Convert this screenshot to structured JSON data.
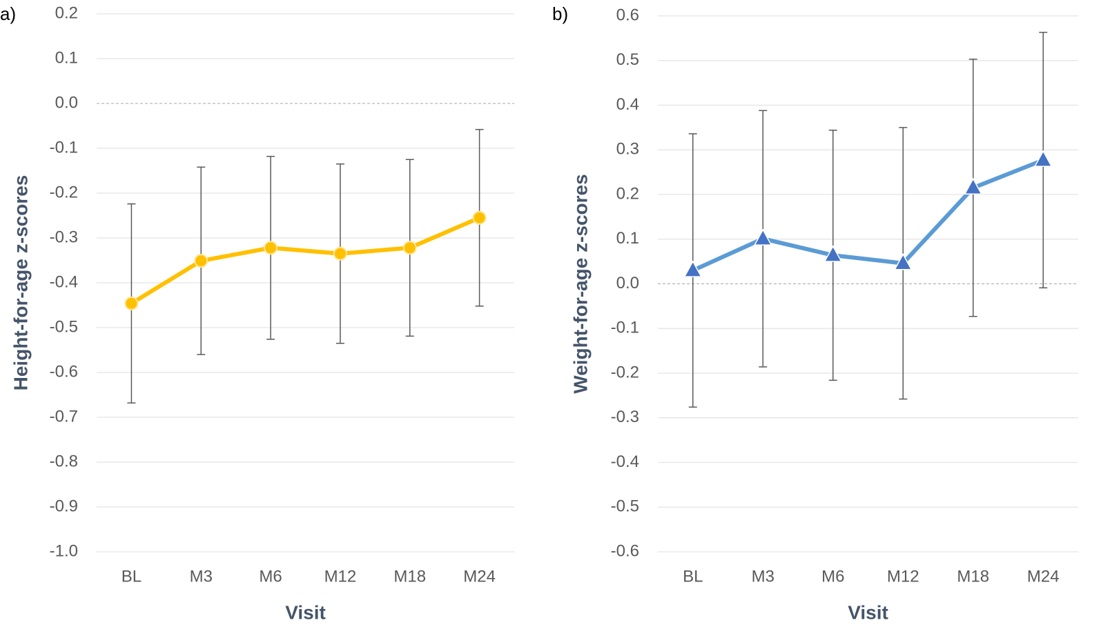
{
  "chart_data": [
    {
      "type": "line",
      "label": "a)",
      "y_label": "Height-for-age z-scores",
      "x_label": "Visit",
      "categories": [
        "BL",
        "M3",
        "M6",
        "M12",
        "M18",
        "M24"
      ],
      "values": [
        -0.446,
        -0.351,
        -0.322,
        -0.335,
        -0.322,
        -0.255
      ],
      "errors": [
        0.222,
        0.209,
        0.204,
        0.2,
        0.197,
        0.197
      ],
      "color": "#ffc000",
      "marker": "circle",
      "ylim": [
        -1.0,
        0.2
      ],
      "yticks": [
        {
          "value": 0.2,
          "label": "0.2"
        },
        {
          "value": 0.1,
          "label": "0.1"
        },
        {
          "value": 0,
          "label": "0.0"
        },
        {
          "value": -0.1,
          "label": "-0.1"
        },
        {
          "value": -0.2,
          "label": "-0.2"
        },
        {
          "value": -0.3,
          "label": "-0.3"
        },
        {
          "value": -0.4,
          "label": "-0.4"
        },
        {
          "value": -0.5,
          "label": "-0.5"
        },
        {
          "value": -0.6,
          "label": "-0.6"
        },
        {
          "value": -0.7,
          "label": "-0.7"
        },
        {
          "value": -0.8,
          "label": "-0.8"
        },
        {
          "value": -0.9,
          "label": "-0.9"
        },
        {
          "value": -1.0,
          "label": "-1.0"
        }
      ],
      "grid": true
    },
    {
      "type": "line",
      "label": "b)",
      "y_label": "Weight-for-age z-scores",
      "x_label": "Visit",
      "categories": [
        "BL",
        "M3",
        "M6",
        "M12",
        "M18",
        "M24"
      ],
      "values": [
        0.03,
        0.101,
        0.064,
        0.046,
        0.215,
        0.277
      ],
      "errors": [
        0.306,
        0.287,
        0.28,
        0.304,
        0.288,
        0.286
      ],
      "color": "#5b9bd5",
      "marker": "triangle",
      "ylim": [
        -0.6,
        0.6
      ],
      "yticks": [
        {
          "value": 0.6,
          "label": "0.6"
        },
        {
          "value": 0.5,
          "label": "0.5"
        },
        {
          "value": 0.4,
          "label": "0.4"
        },
        {
          "value": 0.3,
          "label": "0.3"
        },
        {
          "value": 0.2,
          "label": "0.2"
        },
        {
          "value": 0.1,
          "label": "0.1"
        },
        {
          "value": 0,
          "label": "0.0"
        },
        {
          "value": -0.1,
          "label": "-0.1"
        },
        {
          "value": -0.2,
          "label": "-0.2"
        },
        {
          "value": -0.3,
          "label": "-0.3"
        },
        {
          "value": -0.4,
          "label": "-0.4"
        },
        {
          "value": -0.5,
          "label": "-0.5"
        },
        {
          "value": -0.6,
          "label": "-0.6"
        }
      ],
      "grid": true
    }
  ]
}
